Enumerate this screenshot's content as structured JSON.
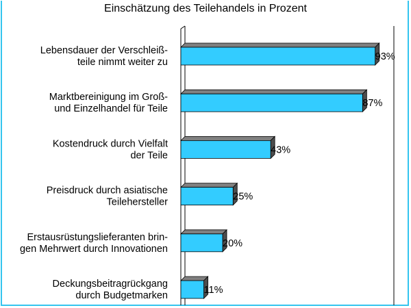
{
  "chart_data": {
    "type": "bar",
    "orientation": "horizontal",
    "title": "Einschätzung des Teilehandels in Prozent",
    "categories": [
      [
        "Lebensdauer der Verschleiß-",
        "teile nimmt weiter zu"
      ],
      [
        "Marktbereinigung im Groß-",
        "und Einzelhandel für Teile"
      ],
      [
        "Kostendruck durch Vielfalt",
        "der Teile"
      ],
      [
        "Preisdruck durch asiatische",
        "Teilehersteller"
      ],
      [
        "Erstausrüstungslieferanten brin-",
        "gen Mehrwert durch Innovationen"
      ],
      [
        "Deckungsbeitragrückgang",
        "durch Budgetmarken"
      ]
    ],
    "values": [
      93,
      87,
      43,
      25,
      20,
      11
    ],
    "value_labels": [
      "93%",
      "87%",
      "43%",
      "25%",
      "20%",
      "11%"
    ],
    "xlim": [
      0,
      100
    ],
    "grid": false,
    "legend": "none",
    "colors": {
      "bar_front": "#33ccff",
      "bar_top": "#808080",
      "bar_side": "#4d4d4d",
      "frame": "#33c4ee"
    }
  }
}
